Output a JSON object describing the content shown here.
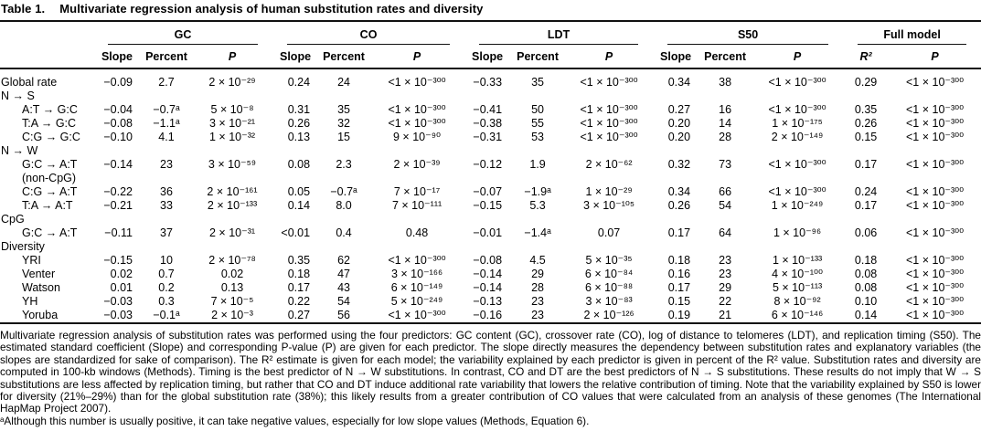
{
  "title": {
    "label": "Table 1.",
    "text": "Multivariate regression analysis of human substitution rates and diversity"
  },
  "table": {
    "groups": [
      {
        "label": "GC",
        "cols": [
          "Slope",
          "Percent",
          "P"
        ]
      },
      {
        "label": "CO",
        "cols": [
          "Slope",
          "Percent",
          "P"
        ]
      },
      {
        "label": "LDT",
        "cols": [
          "Slope",
          "Percent",
          "P"
        ]
      },
      {
        "label": "S50",
        "cols": [
          "Slope",
          "Percent",
          "P"
        ]
      },
      {
        "label": "Full model",
        "cols": [
          "R²",
          "P"
        ]
      }
    ],
    "rows": [
      {
        "label": "Global rate",
        "indent": false,
        "section": false,
        "cells": [
          "−0.09",
          "2.7",
          "2 × 10⁻²⁹",
          "0.24",
          "24",
          "<1 × 10⁻³⁰⁰",
          "−0.33",
          "35",
          "<1 × 10⁻³⁰⁰",
          "0.34",
          "38",
          "<1 × 10⁻³⁰⁰",
          "0.29",
          "<1 × 10⁻³⁰⁰"
        ]
      },
      {
        "label": "N → S",
        "indent": false,
        "section": true,
        "cells": []
      },
      {
        "label": "A:T → G:C",
        "indent": true,
        "section": false,
        "cells": [
          "−0.04",
          "−0.7ᵃ",
          "5 × 10⁻⁸",
          "0.31",
          "35",
          "<1 × 10⁻³⁰⁰",
          "−0.41",
          "50",
          "<1 × 10⁻³⁰⁰",
          "0.27",
          "16",
          "<1 × 10⁻³⁰⁰",
          "0.35",
          "<1 × 10⁻³⁰⁰"
        ]
      },
      {
        "label": "T:A → G:C",
        "indent": true,
        "section": false,
        "cells": [
          "−0.08",
          "−1.1ᵃ",
          "3 × 10⁻²¹",
          "0.26",
          "32",
          "<1 × 10⁻³⁰⁰",
          "−0.38",
          "55",
          "<1 × 10⁻³⁰⁰",
          "0.20",
          "14",
          "1 × 10⁻¹⁷⁵",
          "0.26",
          "<1 × 10⁻³⁰⁰"
        ]
      },
      {
        "label": "C:G → G:C",
        "indent": true,
        "section": false,
        "cells": [
          "−0.10",
          "4.1",
          "1 × 10⁻³²",
          "0.13",
          "15",
          "9 × 10⁻⁹⁰",
          "−0.31",
          "53",
          "<1 × 10⁻³⁰⁰",
          "0.20",
          "28",
          "2 × 10⁻¹⁴⁹",
          "0.15",
          "<1 × 10⁻³⁰⁰"
        ]
      },
      {
        "label": "N → W",
        "indent": false,
        "section": true,
        "cells": []
      },
      {
        "label": "G:C → A:T",
        "label2": "(non-CpG)",
        "indent": true,
        "section": false,
        "cells": [
          "−0.14",
          "23",
          "3 × 10⁻⁵⁹",
          "0.08",
          "2.3",
          "2 × 10⁻³⁹",
          "−0.12",
          "1.9",
          "2 × 10⁻⁶²",
          "0.32",
          "73",
          "<1 × 10⁻³⁰⁰",
          "0.17",
          "<1 × 10⁻³⁰⁰"
        ]
      },
      {
        "label": "C:G → A:T",
        "indent": true,
        "section": false,
        "cells": [
          "−0.22",
          "36",
          "2 × 10⁻¹⁶¹",
          "0.05",
          "−0.7ᵃ",
          "7 × 10⁻¹⁷",
          "−0.07",
          "−1.9ᵃ",
          "1 × 10⁻²⁹",
          "0.34",
          "66",
          "<1 × 10⁻³⁰⁰",
          "0.24",
          "<1 × 10⁻³⁰⁰"
        ]
      },
      {
        "label": "T:A → A:T",
        "indent": true,
        "section": false,
        "cells": [
          "−0.21",
          "33",
          "2 × 10⁻¹³³",
          "0.14",
          "8.0",
          "7 × 10⁻¹¹¹",
          "−0.15",
          "5.3",
          "3 × 10⁻¹⁰⁵",
          "0.26",
          "54",
          "1 × 10⁻²⁴⁹",
          "0.17",
          "<1 × 10⁻³⁰⁰"
        ]
      },
      {
        "label": "CpG",
        "indent": false,
        "section": true,
        "cells": []
      },
      {
        "label": "G:C → A:T",
        "indent": true,
        "section": false,
        "cells": [
          "−0.11",
          "37",
          "2 × 10⁻³¹",
          "<0.01",
          "0.4",
          "0.48",
          "−0.01",
          "−1.4ᵃ",
          "0.07",
          "0.17",
          "64",
          "1 × 10⁻⁹⁶",
          "0.06",
          "<1 × 10⁻³⁰⁰"
        ]
      },
      {
        "label": "Diversity",
        "indent": false,
        "section": true,
        "cells": []
      },
      {
        "label": "YRI",
        "indent": true,
        "section": false,
        "cells": [
          "−0.15",
          "10",
          "2 × 10⁻⁷⁸",
          "0.35",
          "62",
          "<1 × 10⁻³⁰⁰",
          "−0.08",
          "4.5",
          "5 × 10⁻³⁵",
          "0.18",
          "23",
          "1 × 10⁻¹³³",
          "0.18",
          "<1 × 10⁻³⁰⁰"
        ]
      },
      {
        "label": "Venter",
        "indent": true,
        "section": false,
        "cells": [
          "0.02",
          "0.7",
          "0.02",
          "0.18",
          "47",
          "3 × 10⁻¹⁶⁶",
          "−0.14",
          "29",
          "6 × 10⁻⁸⁴",
          "0.16",
          "23",
          "4 × 10⁻¹⁰⁰",
          "0.08",
          "<1 × 10⁻³⁰⁰"
        ]
      },
      {
        "label": "Watson",
        "indent": true,
        "section": false,
        "cells": [
          "0.01",
          "0.2",
          "0.13",
          "0.17",
          "43",
          "6 × 10⁻¹⁴⁹",
          "−0.14",
          "28",
          "6 × 10⁻⁸⁸",
          "0.17",
          "29",
          "5 × 10⁻¹¹³",
          "0.08",
          "<1 × 10⁻³⁰⁰"
        ]
      },
      {
        "label": "YH",
        "indent": true,
        "section": false,
        "cells": [
          "−0.03",
          "0.3",
          "7 × 10⁻⁵",
          "0.22",
          "54",
          "5 × 10⁻²⁴⁹",
          "−0.13",
          "23",
          "3 × 10⁻⁸³",
          "0.15",
          "22",
          "8 × 10⁻⁹²",
          "0.10",
          "<1 × 10⁻³⁰⁰"
        ]
      },
      {
        "label": "Yoruba",
        "indent": true,
        "section": false,
        "cells": [
          "−0.03",
          "−0.1ᵃ",
          "2 × 10⁻³",
          "0.27",
          "56",
          "<1 × 10⁻³⁰⁰",
          "−0.16",
          "23",
          "2 × 10⁻¹²⁶",
          "0.19",
          "21",
          "6 × 10⁻¹⁴⁶",
          "0.14",
          "<1 × 10⁻³⁰⁰"
        ]
      }
    ]
  },
  "caption": "Multivariate regression analysis of substitution rates was performed using the four predictors: GC content (GC), crossover rate (CO), log of distance to telomeres (LDT), and replication timing (S50). The estimated standard coefficient (Slope) and corresponding P-value (P) are given for each predictor. The slope directly measures the dependency between substitution rates and explanatory variables (the slopes are standardized for sake of comparison). The R² estimate is given for each model; the variability explained by each predictor is given in percent of the R² value. Substitution rates and diversity are computed in 100-kb windows (Methods). Timing is the best predictor of N → W substitutions. In contrast, CO and DT are the best predictors of N → S substitutions. These results do not imply that W → S substitutions are less affected by replication timing, but rather that CO and DT induce additional rate variability that lowers the relative contribution of timing. Note that the variability explained by S50 is lower for diversity (21%–29%) than for the global substitution rate (38%); this likely results from a greater contribution of CO values that were calculated from an analysis of these genomes (The International HapMap Project 2007).",
  "footnote": "ᵃAlthough this number is usually positive, it can take negative values, especially for low slope values (Methods, Equation 6)."
}
